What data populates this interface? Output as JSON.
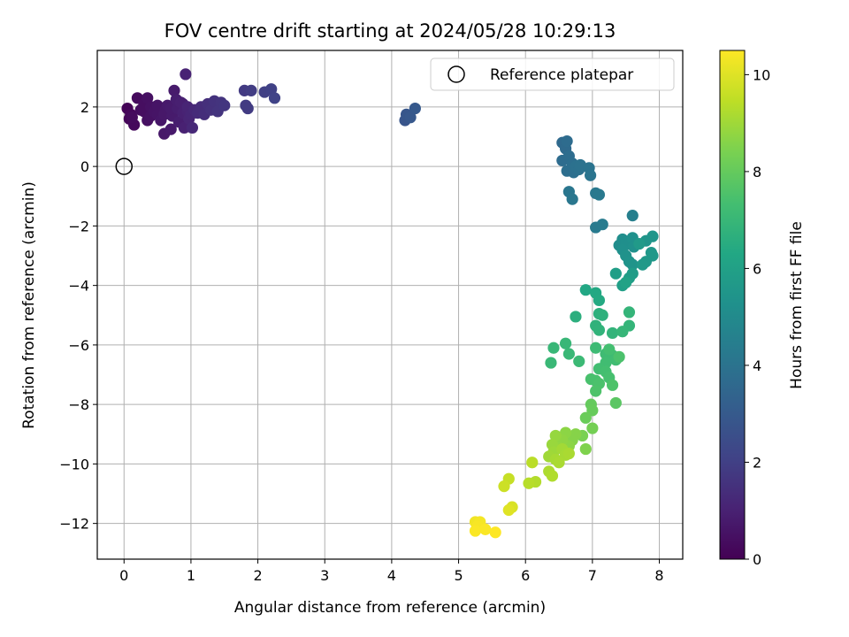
{
  "chart_data": {
    "type": "scatter",
    "title": "FOV centre drift starting at 2024/05/28 10:29:13",
    "xlabel": "Angular distance from reference (arcmin)",
    "ylabel": "Rotation from reference (arcmin)",
    "xlim": [
      -0.4,
      8.35
    ],
    "ylim": [
      -13.2,
      3.9
    ],
    "xticks": [
      0,
      1,
      2,
      3,
      4,
      5,
      6,
      7,
      8
    ],
    "yticks": [
      -12,
      -10,
      -8,
      -6,
      -4,
      -2,
      0,
      2
    ],
    "grid": true,
    "colormap": "viridis",
    "colorbar": {
      "label": "Hours from first FF file",
      "range": [
        0,
        10.5
      ],
      "ticks": [
        0,
        2,
        4,
        6,
        8,
        10
      ]
    },
    "legend": {
      "position": "top-right",
      "entries": [
        "Reference platepar"
      ]
    },
    "reference_point": {
      "x": 0,
      "y": 0
    },
    "columns": [
      "x",
      "y",
      "hours"
    ],
    "points": [
      [
        0.05,
        1.95,
        0.1
      ],
      [
        0.08,
        1.6,
        0.15
      ],
      [
        0.1,
        1.75,
        0.2
      ],
      [
        0.15,
        1.4,
        0.25
      ],
      [
        0.12,
        1.65,
        0.3
      ],
      [
        0.2,
        2.3,
        0.3
      ],
      [
        0.25,
        1.9,
        0.35
      ],
      [
        0.3,
        1.85,
        0.4
      ],
      [
        0.35,
        2.3,
        0.45
      ],
      [
        0.4,
        2.0,
        0.5
      ],
      [
        0.45,
        1.85,
        0.55
      ],
      [
        0.5,
        1.75,
        0.6
      ],
      [
        0.55,
        1.55,
        0.65
      ],
      [
        0.6,
        1.1,
        0.7
      ],
      [
        0.62,
        1.9,
        0.7
      ],
      [
        0.65,
        2.05,
        0.75
      ],
      [
        0.7,
        1.25,
        0.75
      ],
      [
        0.72,
        1.7,
        0.8
      ],
      [
        0.75,
        2.55,
        0.8
      ],
      [
        0.78,
        2.25,
        0.85
      ],
      [
        0.8,
        1.95,
        0.9
      ],
      [
        0.82,
        1.5,
        0.9
      ],
      [
        0.85,
        2.15,
        0.95
      ],
      [
        0.88,
        1.8,
        1.0
      ],
      [
        0.9,
        1.3,
        1.0
      ],
      [
        0.92,
        3.1,
        1.05
      ],
      [
        0.95,
        2.0,
        1.1
      ],
      [
        0.97,
        1.6,
        1.1
      ],
      [
        1.0,
        1.75,
        1.15
      ],
      [
        1.02,
        1.3,
        1.2
      ],
      [
        1.05,
        1.9,
        1.2
      ],
      [
        0.8,
        2.2,
        0.9
      ],
      [
        0.7,
        1.95,
        0.8
      ],
      [
        0.6,
        1.75,
        0.7
      ],
      [
        0.5,
        2.05,
        0.6
      ],
      [
        0.4,
        1.7,
        0.5
      ],
      [
        0.35,
        1.55,
        0.45
      ],
      [
        0.3,
        2.1,
        0.4
      ],
      [
        0.88,
        2.1,
        0.95
      ],
      [
        0.95,
        1.85,
        1.05
      ],
      [
        1.1,
        1.8,
        1.3
      ],
      [
        1.15,
        2.0,
        1.35
      ],
      [
        1.2,
        1.75,
        1.4
      ],
      [
        1.25,
        2.1,
        1.45
      ],
      [
        1.3,
        1.9,
        1.5
      ],
      [
        1.35,
        2.2,
        1.55
      ],
      [
        1.4,
        1.85,
        1.6
      ],
      [
        1.45,
        2.15,
        1.6
      ],
      [
        1.5,
        2.05,
        1.65
      ],
      [
        1.8,
        2.55,
        1.8
      ],
      [
        1.82,
        2.05,
        1.85
      ],
      [
        1.85,
        1.95,
        1.85
      ],
      [
        1.9,
        2.55,
        1.9
      ],
      [
        2.1,
        2.5,
        2.0
      ],
      [
        2.2,
        2.6,
        2.05
      ],
      [
        2.25,
        2.3,
        2.1
      ],
      [
        4.2,
        1.55,
        2.8
      ],
      [
        4.22,
        1.75,
        2.85
      ],
      [
        4.28,
        1.65,
        2.9
      ],
      [
        4.35,
        1.95,
        2.95
      ],
      [
        6.55,
        0.8,
        3.6
      ],
      [
        6.6,
        0.6,
        3.65
      ],
      [
        6.62,
        0.85,
        3.7
      ],
      [
        6.55,
        0.2,
        3.7
      ],
      [
        6.65,
        0.35,
        3.75
      ],
      [
        6.7,
        0.1,
        3.8
      ],
      [
        6.62,
        -0.15,
        3.8
      ],
      [
        6.72,
        -0.2,
        3.85
      ],
      [
        6.75,
        0.0,
        3.9
      ],
      [
        6.8,
        -0.1,
        3.9
      ],
      [
        6.82,
        0.05,
        3.95
      ],
      [
        6.95,
        -0.05,
        4.0
      ],
      [
        6.97,
        -0.3,
        4.05
      ],
      [
        6.65,
        -0.85,
        4.1
      ],
      [
        6.7,
        -1.1,
        4.15
      ],
      [
        7.05,
        -0.9,
        4.2
      ],
      [
        7.1,
        -0.95,
        4.25
      ],
      [
        7.05,
        -2.05,
        4.3
      ],
      [
        7.15,
        -1.95,
        4.35
      ],
      [
        7.6,
        -1.65,
        4.5
      ],
      [
        7.4,
        -2.65,
        5.1
      ],
      [
        7.45,
        -2.45,
        5.15
      ],
      [
        7.5,
        -2.55,
        5.2
      ],
      [
        7.55,
        -2.6,
        5.2
      ],
      [
        7.45,
        -2.8,
        5.25
      ],
      [
        7.6,
        -2.4,
        5.3
      ],
      [
        7.62,
        -2.7,
        5.3
      ],
      [
        7.5,
        -3.0,
        5.35
      ],
      [
        7.55,
        -3.2,
        5.4
      ],
      [
        7.6,
        -3.3,
        5.45
      ],
      [
        7.8,
        -2.5,
        5.5
      ],
      [
        7.9,
        -2.35,
        5.5
      ],
      [
        7.88,
        -2.9,
        5.55
      ],
      [
        7.9,
        -3.0,
        5.6
      ],
      [
        7.8,
        -3.2,
        5.6
      ],
      [
        7.75,
        -3.3,
        5.65
      ],
      [
        7.7,
        -2.6,
        5.7
      ],
      [
        7.6,
        -3.6,
        5.8
      ],
      [
        7.55,
        -3.75,
        5.85
      ],
      [
        7.35,
        -3.6,
        5.9
      ],
      [
        7.45,
        -4.0,
        5.95
      ],
      [
        7.5,
        -3.9,
        6.05
      ],
      [
        6.9,
        -4.15,
        6.3
      ],
      [
        7.05,
        -4.25,
        6.35
      ],
      [
        7.1,
        -4.5,
        6.4
      ],
      [
        6.75,
        -5.05,
        6.6
      ],
      [
        7.1,
        -4.95,
        6.65
      ],
      [
        7.15,
        -5.0,
        6.7
      ],
      [
        7.05,
        -5.35,
        6.75
      ],
      [
        7.1,
        -5.5,
        6.8
      ],
      [
        7.3,
        -5.6,
        6.85
      ],
      [
        7.55,
        -4.9,
        6.9
      ],
      [
        7.55,
        -5.35,
        6.9
      ],
      [
        7.45,
        -5.55,
        6.95
      ],
      [
        6.6,
        -5.95,
        7.0
      ],
      [
        6.42,
        -6.1,
        7.0
      ],
      [
        6.65,
        -6.3,
        7.05
      ],
      [
        6.38,
        -6.6,
        7.05
      ],
      [
        6.8,
        -6.55,
        7.1
      ],
      [
        7.05,
        -6.1,
        7.15
      ],
      [
        7.2,
        -6.3,
        7.2
      ],
      [
        7.3,
        -6.35,
        7.2
      ],
      [
        7.35,
        -6.5,
        7.25
      ],
      [
        7.2,
        -6.6,
        7.25
      ],
      [
        7.1,
        -6.8,
        7.3
      ],
      [
        7.2,
        -6.9,
        7.35
      ],
      [
        7.25,
        -7.1,
        7.4
      ],
      [
        7.05,
        -7.2,
        7.45
      ],
      [
        6.98,
        -7.15,
        7.45
      ],
      [
        7.1,
        -7.3,
        7.5
      ],
      [
        7.05,
        -7.55,
        7.55
      ],
      [
        7.3,
        -7.35,
        7.55
      ],
      [
        7.4,
        -6.4,
        7.5
      ],
      [
        7.25,
        -6.15,
        7.35
      ],
      [
        7.35,
        -7.95,
        7.8
      ],
      [
        6.98,
        -8.0,
        8.0
      ],
      [
        7.0,
        -8.2,
        8.05
      ],
      [
        6.9,
        -8.45,
        8.1
      ],
      [
        7.0,
        -8.8,
        8.3
      ],
      [
        6.85,
        -9.05,
        8.4
      ],
      [
        6.9,
        -9.5,
        8.5
      ],
      [
        6.75,
        -9.0,
        8.6
      ],
      [
        6.7,
        -9.2,
        8.6
      ],
      [
        6.65,
        -9.4,
        8.7
      ],
      [
        6.6,
        -8.95,
        8.7
      ],
      [
        6.55,
        -9.2,
        8.75
      ],
      [
        6.5,
        -9.45,
        8.8
      ],
      [
        6.45,
        -9.05,
        8.85
      ],
      [
        6.4,
        -9.35,
        8.9
      ],
      [
        6.42,
        -9.6,
        8.95
      ],
      [
        6.35,
        -9.75,
        9.0
      ],
      [
        6.55,
        -9.5,
        9.05
      ],
      [
        6.45,
        -9.85,
        9.1
      ],
      [
        6.6,
        -9.7,
        9.1
      ],
      [
        6.5,
        -9.95,
        9.15
      ],
      [
        6.65,
        -9.65,
        9.15
      ],
      [
        6.35,
        -10.25,
        9.2
      ],
      [
        6.4,
        -10.4,
        9.25
      ],
      [
        6.15,
        -10.6,
        9.3
      ],
      [
        6.05,
        -10.65,
        9.35
      ],
      [
        6.1,
        -9.95,
        9.4
      ],
      [
        5.75,
        -10.5,
        9.6
      ],
      [
        5.68,
        -10.75,
        9.7
      ],
      [
        5.8,
        -11.45,
        9.9
      ],
      [
        5.75,
        -11.55,
        10.0
      ],
      [
        5.25,
        -11.95,
        10.3
      ],
      [
        5.32,
        -11.95,
        10.35
      ],
      [
        5.28,
        -12.1,
        10.4
      ],
      [
        5.25,
        -12.25,
        10.45
      ],
      [
        5.4,
        -12.2,
        10.45
      ],
      [
        5.55,
        -12.3,
        10.5
      ]
    ]
  }
}
